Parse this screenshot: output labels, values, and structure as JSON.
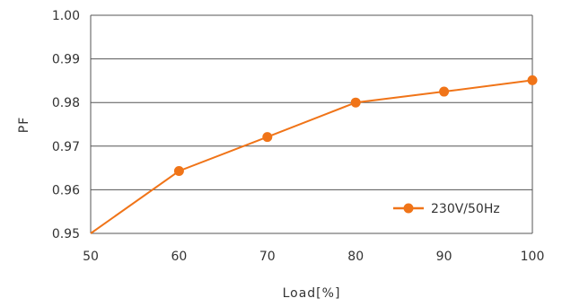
{
  "chart_data": {
    "type": "line",
    "xlabel": "Load[%]",
    "ylabel": "PF",
    "xlim": [
      50,
      100
    ],
    "ylim": [
      0.95,
      1.0
    ],
    "xticks": [
      "50",
      "60",
      "70",
      "80",
      "90",
      "100"
    ],
    "yticks": [
      "0.95",
      "0.96",
      "0.97",
      "0.98",
      "0.99",
      "1.00"
    ],
    "grid": "horizontal",
    "legend_position": "bottom-right",
    "series": [
      {
        "name": "230V/50Hz",
        "color": "#f07418",
        "x": [
          50,
          60,
          70,
          80,
          90,
          100
        ],
        "y": [
          0.95,
          0.9643,
          0.9721,
          0.98,
          0.9825,
          0.9851
        ],
        "markers": [
          false,
          true,
          true,
          true,
          true,
          true
        ]
      }
    ]
  }
}
